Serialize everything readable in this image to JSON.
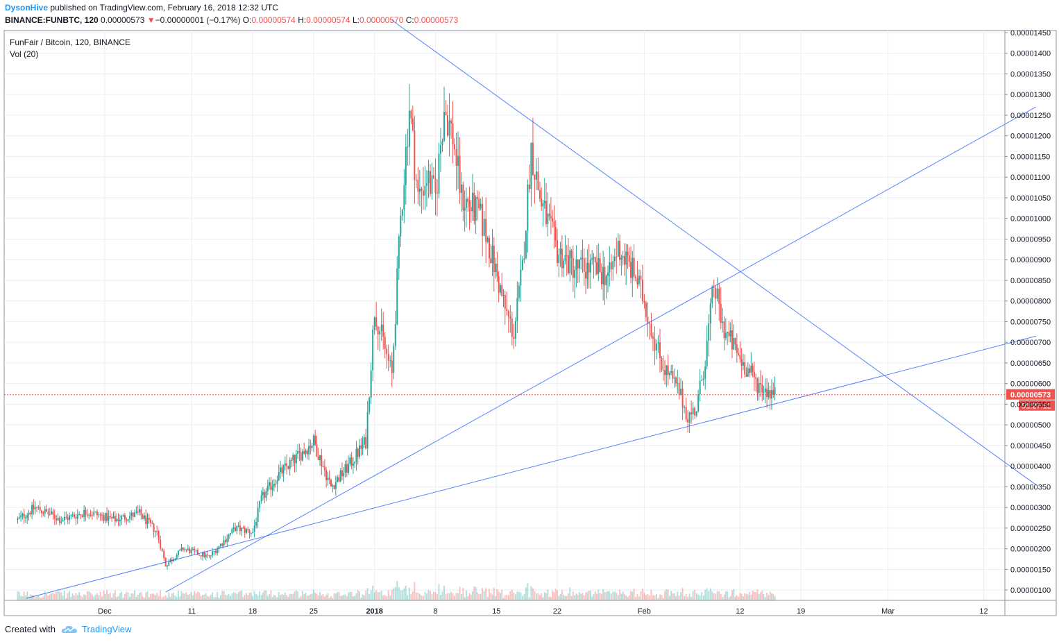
{
  "header": {
    "author": "DysonHive",
    "published_text": "published on TradingView.com, February 16, 2018 12:32 UTC",
    "symbol_line": "BINANCE:FUNBTC, 120",
    "last_price": "0.00000573",
    "change_arrow": "▼",
    "change": "−0.00000001 (−0.17%)",
    "o_label": "O:",
    "o_value": "0.00000574",
    "h_label": "H:",
    "h_value": "0.00000574",
    "l_label": "L:",
    "l_value": "0.00000570",
    "c_label": "C:",
    "c_value": "0.00000573"
  },
  "legend": {
    "series": "FunFair / Bitcoin, 120, BINANCE",
    "volume": "Vol (20)"
  },
  "footer": {
    "created_with": "Created with",
    "brand": "TradingView"
  },
  "colors": {
    "up": "#26a69a",
    "down": "#ef5350",
    "trendline": "#2962ff",
    "price_line": "#ef5350",
    "grid": "#e9eff4",
    "vol_ma": "#ff9800"
  },
  "chart_data": {
    "type": "candlestick",
    "x_axis_labels": [
      "Dec",
      "11",
      "18",
      "25",
      "2018",
      "8",
      "15",
      "22",
      "Feb",
      "12",
      "19",
      "Mar",
      "12"
    ],
    "y_axis_labels": [
      "0.00001450",
      "0.00001400",
      "0.00001350",
      "0.00001300",
      "0.00001250",
      "0.00001200",
      "0.00001150",
      "0.00001100",
      "0.00001050",
      "0.00001000",
      "0.00000950",
      "0.00000900",
      "0.00000850",
      "0.00000800",
      "0.00000750",
      "0.00000700",
      "0.00000650",
      "0.00000600",
      "0.00000550",
      "0.00000500",
      "0.00000450",
      "0.00000400",
      "0.00000350",
      "0.00000300",
      "0.00000250",
      "0.00000200",
      "0.00000150",
      "0.00000100"
    ],
    "ylim": [
      7.5e-07,
      1.455e-05
    ],
    "current_price_label": "0.00000573",
    "countdown_label": "01:27:12",
    "price_path": [
      [
        "2017-11-21",
        270
      ],
      [
        "2017-11-23",
        300
      ],
      [
        "2017-11-26",
        270
      ],
      [
        "2017-11-29",
        290
      ],
      [
        "2017-12-02",
        270
      ],
      [
        "2017-12-05",
        285
      ],
      [
        "2017-12-07",
        240
      ],
      [
        "2017-12-08",
        160
      ],
      [
        "2017-12-10",
        200
      ],
      [
        "2017-12-13",
        180
      ],
      [
        "2017-12-16",
        250
      ],
      [
        "2017-12-18",
        240
      ],
      [
        "2017-12-19",
        320
      ],
      [
        "2017-12-21",
        380
      ],
      [
        "2017-12-23",
        420
      ],
      [
        "2017-12-25",
        460
      ],
      [
        "2017-12-27",
        350
      ],
      [
        "2017-12-29",
        400
      ],
      [
        "2017-12-31",
        460
      ],
      [
        "2018-01-01",
        780
      ],
      [
        "2018-01-02",
        700
      ],
      [
        "2018-01-03",
        620
      ],
      [
        "2018-01-04",
        1000
      ],
      [
        "2018-01-05",
        1270
      ],
      [
        "2018-01-06",
        1050
      ],
      [
        "2018-01-07",
        1100
      ],
      [
        "2018-01-08",
        1050
      ],
      [
        "2018-01-09",
        1270
      ],
      [
        "2018-01-10",
        1200
      ],
      [
        "2018-01-11",
        1050
      ],
      [
        "2018-01-13",
        1010
      ],
      [
        "2018-01-14",
        950
      ],
      [
        "2018-01-16",
        780
      ],
      [
        "2018-01-17",
        720
      ],
      [
        "2018-01-18",
        880
      ],
      [
        "2018-01-19",
        1170
      ],
      [
        "2018-01-20",
        1050
      ],
      [
        "2018-01-22",
        920
      ],
      [
        "2018-01-24",
        880
      ],
      [
        "2018-01-26",
        880
      ],
      [
        "2018-01-28",
        860
      ],
      [
        "2018-01-29",
        930
      ],
      [
        "2018-01-31",
        860
      ],
      [
        "2018-02-01",
        800
      ],
      [
        "2018-02-02",
        720
      ],
      [
        "2018-02-03",
        650
      ],
      [
        "2018-02-05",
        580
      ],
      [
        "2018-02-06",
        520
      ],
      [
        "2018-02-07",
        540
      ],
      [
        "2018-02-08",
        660
      ],
      [
        "2018-02-09",
        840
      ],
      [
        "2018-02-10",
        740
      ],
      [
        "2018-02-12",
        660
      ],
      [
        "2018-02-14",
        600
      ],
      [
        "2018-02-16",
        573
      ]
    ],
    "price_unit_note": "price values in units of 1e-8 BTC",
    "trendlines": [
      {
        "from": [
          "2017-12-08",
          95
        ],
        "to": [
          "2018-03-18",
          1270
        ]
      },
      {
        "from": [
          "2017-11-22",
          80
        ],
        "to": [
          "2018-03-18",
          715
        ]
      },
      {
        "from": [
          "2018-01-03",
          1480
        ],
        "to": [
          "2018-03-18",
          355
        ]
      }
    ]
  }
}
